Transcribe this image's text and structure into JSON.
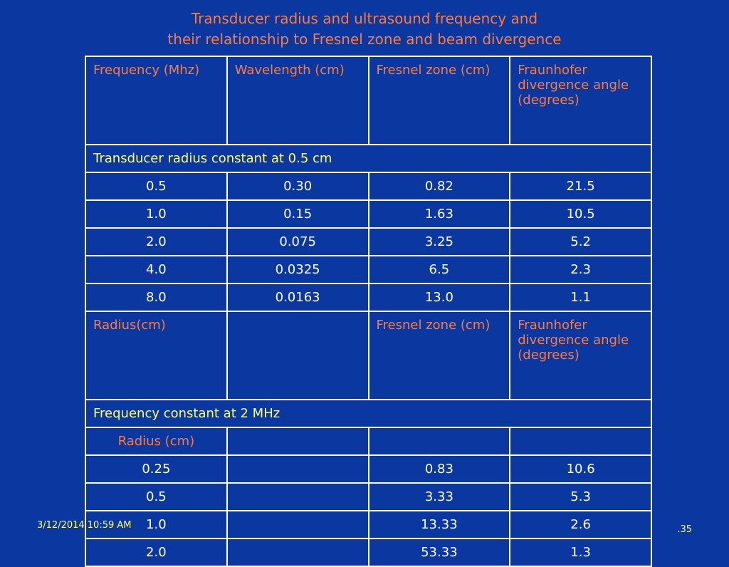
{
  "title": {
    "line1": "Transducer radius and ultrasound frequency and",
    "line2": "their relationship to Fresnel zone and beam divergence"
  },
  "header1": [
    "Frequency (Mhz)",
    "Wavelength (cm)",
    "Fresnel zone (cm)",
    "Fraunhofer divergence angle (degrees)"
  ],
  "section1_label": "Transducer radius constant at 0.5 cm",
  "rows1": [
    [
      "0.5",
      "0.30",
      "0.82",
      "21.5"
    ],
    [
      "1.0",
      "0.15",
      "1.63",
      "10.5"
    ],
    [
      "2.0",
      "0.075",
      "3.25",
      "5.2"
    ],
    [
      "4.0",
      "0.0325",
      "6.5",
      "2.3"
    ],
    [
      "8.0",
      "0.0163",
      "13.0",
      "1.1"
    ]
  ],
  "header2": [
    "Radius(cm)",
    "",
    "Fresnel zone (cm)",
    "Fraunhofer divergence angle (degrees)"
  ],
  "section2_label": "Frequency constant at 2 MHz",
  "subheader2": [
    "Radius (cm)",
    "",
    "",
    ""
  ],
  "rows2": [
    [
      "0.25",
      "",
      "0.83",
      "10.6"
    ],
    [
      "0.5",
      "",
      "3.33",
      "5.3"
    ],
    [
      "1.0",
      "",
      "13.33",
      "2.6"
    ],
    [
      "2.0",
      "",
      "53.33",
      "1.3"
    ]
  ],
  "footer": {
    "date": "3/12/2014 10:59 AM",
    "page": ".35"
  }
}
